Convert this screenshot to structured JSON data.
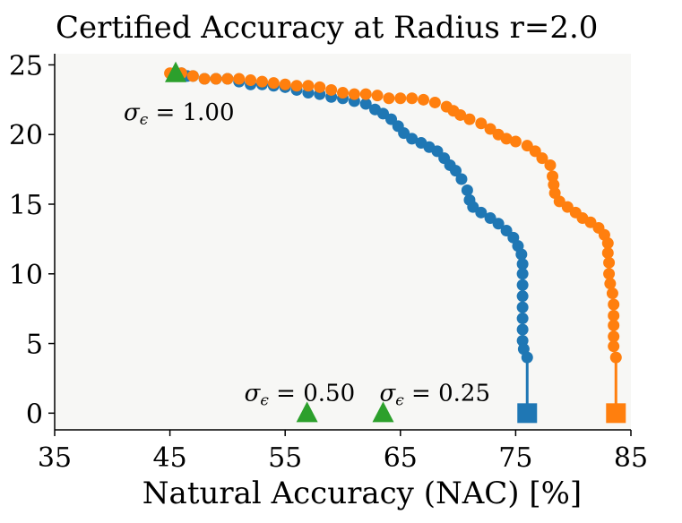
{
  "chart_data": {
    "type": "scatter",
    "title": "Certified Accuracy at Radius r=2.0",
    "xlabel": "Natural Accuracy (NAC) [%]",
    "ylabel": "",
    "xlim": [
      35,
      85
    ],
    "ylim": [
      -1.2,
      25.8
    ],
    "xticks": [
      35,
      45,
      55,
      65,
      75,
      85
    ],
    "yticks": [
      0,
      5,
      10,
      15,
      20,
      25
    ],
    "grid": false,
    "plot_background": "#f7f7f5",
    "series": [
      {
        "color": "#1f77b4",
        "marker": "circle",
        "line": false,
        "points": [
          [
            45.4,
            24.4
          ],
          [
            46.0,
            24.4
          ],
          [
            46.5,
            24.2
          ],
          [
            47.0,
            24.2
          ],
          [
            48.0,
            24.0
          ],
          [
            49.0,
            24.0
          ],
          [
            50.0,
            24.0
          ],
          [
            51.0,
            23.8
          ],
          [
            52.0,
            23.6
          ],
          [
            53.0,
            23.6
          ],
          [
            54.0,
            23.5
          ],
          [
            55.0,
            23.4
          ],
          [
            56.0,
            23.2
          ],
          [
            57.0,
            23.0
          ],
          [
            58.0,
            22.9
          ],
          [
            59.0,
            22.7
          ],
          [
            60.0,
            22.6
          ],
          [
            61.0,
            22.4
          ],
          [
            62.0,
            22.2
          ],
          [
            62.8,
            21.8
          ],
          [
            63.5,
            21.5
          ],
          [
            64.2,
            21.1
          ],
          [
            64.8,
            20.6
          ],
          [
            65.3,
            20.1
          ],
          [
            66.0,
            19.7
          ],
          [
            66.8,
            19.4
          ],
          [
            67.5,
            19.1
          ],
          [
            68.2,
            18.8
          ],
          [
            68.8,
            18.3
          ],
          [
            69.3,
            17.8
          ],
          [
            69.8,
            17.4
          ],
          [
            70.3,
            16.8
          ],
          [
            70.8,
            16.0
          ],
          [
            71.0,
            15.3
          ],
          [
            71.3,
            14.8
          ],
          [
            72.0,
            14.4
          ],
          [
            72.8,
            14.0
          ],
          [
            73.5,
            13.6
          ],
          [
            74.2,
            13.1
          ],
          [
            74.8,
            12.6
          ],
          [
            75.2,
            12.0
          ],
          [
            75.5,
            11.4
          ],
          [
            75.6,
            10.7
          ],
          [
            75.6,
            10.0
          ],
          [
            75.6,
            9.2
          ],
          [
            75.6,
            8.4
          ],
          [
            75.6,
            7.6
          ],
          [
            75.6,
            6.8
          ],
          [
            75.6,
            6.0
          ],
          [
            75.6,
            5.2
          ],
          [
            75.7,
            4.6
          ],
          [
            76.0,
            4.0
          ]
        ],
        "endpoint": {
          "x": 76.0,
          "y": 0.0,
          "marker": "square"
        }
      },
      {
        "color": "#ff7f0e",
        "marker": "circle",
        "line": false,
        "points": [
          [
            45.0,
            24.4
          ],
          [
            46.0,
            24.4
          ],
          [
            47.0,
            24.2
          ],
          [
            48.0,
            24.0
          ],
          [
            49.0,
            24.0
          ],
          [
            50.0,
            24.0
          ],
          [
            51.0,
            24.0
          ],
          [
            52.0,
            23.9
          ],
          [
            53.0,
            23.8
          ],
          [
            54.0,
            23.7
          ],
          [
            55.0,
            23.6
          ],
          [
            56.0,
            23.5
          ],
          [
            57.0,
            23.5
          ],
          [
            58.0,
            23.4
          ],
          [
            59.0,
            23.2
          ],
          [
            60.0,
            23.0
          ],
          [
            61.0,
            22.9
          ],
          [
            62.0,
            22.9
          ],
          [
            63.0,
            22.8
          ],
          [
            64.0,
            22.6
          ],
          [
            65.0,
            22.6
          ],
          [
            66.0,
            22.6
          ],
          [
            67.0,
            22.5
          ],
          [
            68.0,
            22.3
          ],
          [
            69.0,
            22.0
          ],
          [
            69.6,
            21.7
          ],
          [
            70.2,
            21.4
          ],
          [
            71.0,
            21.1
          ],
          [
            72.0,
            20.8
          ],
          [
            72.8,
            20.4
          ],
          [
            73.5,
            20.0
          ],
          [
            74.2,
            19.7
          ],
          [
            75.0,
            19.5
          ],
          [
            76.0,
            19.2
          ],
          [
            76.7,
            18.8
          ],
          [
            77.3,
            18.3
          ],
          [
            78.0,
            17.8
          ],
          [
            78.2,
            17.0
          ],
          [
            78.3,
            16.4
          ],
          [
            78.4,
            15.8
          ],
          [
            78.8,
            15.2
          ],
          [
            79.5,
            14.8
          ],
          [
            80.2,
            14.4
          ],
          [
            80.8,
            14.0
          ],
          [
            81.5,
            13.7
          ],
          [
            82.2,
            13.3
          ],
          [
            82.7,
            12.8
          ],
          [
            83.0,
            12.2
          ],
          [
            83.0,
            11.5
          ],
          [
            83.1,
            10.8
          ],
          [
            83.1,
            10.0
          ],
          [
            83.2,
            9.3
          ],
          [
            83.4,
            8.6
          ],
          [
            83.5,
            7.8
          ],
          [
            83.5,
            7.0
          ],
          [
            83.5,
            6.3
          ],
          [
            83.5,
            5.5
          ],
          [
            83.5,
            4.8
          ],
          [
            83.7,
            4.0
          ]
        ],
        "endpoint": {
          "x": 83.7,
          "y": 0.0,
          "marker": "square"
        }
      }
    ],
    "markers": {
      "color": "#2ca02c",
      "shape": "triangle",
      "points": [
        {
          "x": 45.5,
          "y": 24.4,
          "label": "1.00"
        },
        {
          "x": 56.9,
          "y": 0.0,
          "label": "0.50"
        },
        {
          "x": 63.5,
          "y": 0.0,
          "label": "0.25"
        }
      ],
      "label_prefix": "σ",
      "label_subscript": "ϵ",
      "label_equals": " = "
    }
  }
}
